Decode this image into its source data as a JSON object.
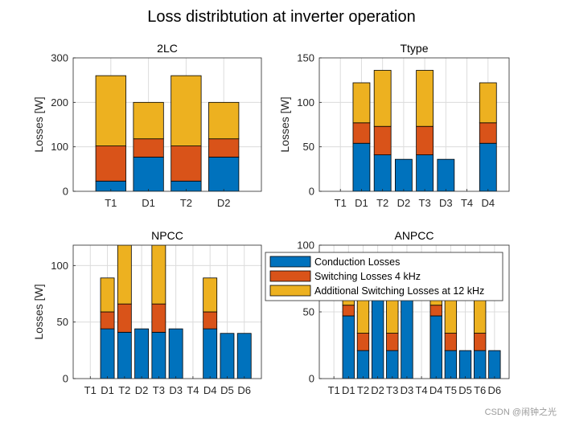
{
  "figure": {
    "title": "Loss distribtution at inverter operation",
    "watermark": "CSDN @闹钟之光"
  },
  "colors": {
    "conduction": "#0072BD",
    "switching": "#D95319",
    "additional": "#EDB120",
    "grid": "#dcdcdc",
    "axis": "#262626"
  },
  "chart_data": [
    {
      "type": "bar",
      "stacked": true,
      "title": "2LC",
      "ylabel": "Losses [W]",
      "ylim": [
        0,
        300
      ],
      "yticks": [
        0,
        100,
        200,
        300
      ],
      "grid": true,
      "categories": [
        "T1",
        "D1",
        "T2",
        "D2"
      ],
      "series": [
        {
          "name": "Conduction Losses",
          "values": [
            23,
            77,
            23,
            77
          ]
        },
        {
          "name": "Switching Losses 4 kHz",
          "values": [
            79,
            41,
            79,
            41
          ]
        },
        {
          "name": "Additional Switching Losses at 12 kHz",
          "values": [
            158,
            82,
            158,
            82
          ]
        }
      ]
    },
    {
      "type": "bar",
      "stacked": true,
      "title": "Ttype",
      "ylabel": "Losses [W]",
      "ylim": [
        0,
        150
      ],
      "yticks": [
        0,
        50,
        100,
        150
      ],
      "grid": true,
      "categories": [
        "T1",
        "D1",
        "T2",
        "D2",
        "T3",
        "D3",
        "T4",
        "D4"
      ],
      "series": [
        {
          "name": "Conduction Losses",
          "values": [
            0,
            54,
            41,
            36,
            41,
            36,
            0,
            54
          ]
        },
        {
          "name": "Switching Losses 4 kHz",
          "values": [
            0,
            23,
            32,
            0,
            32,
            0,
            0,
            23
          ]
        },
        {
          "name": "Additional Switching Losses at 12 kHz",
          "values": [
            0,
            45,
            63,
            0,
            63,
            0,
            0,
            45
          ]
        }
      ]
    },
    {
      "type": "bar",
      "stacked": true,
      "title": "NPCC",
      "ylabel": "Losses [W]",
      "ylim": [
        0,
        118
      ],
      "yticks": [
        0,
        50,
        100
      ],
      "grid": true,
      "categories": [
        "T1",
        "D1",
        "T2",
        "D2",
        "T3",
        "D3",
        "T4",
        "D4",
        "D5",
        "D6"
      ],
      "series": [
        {
          "name": "Conduction Losses",
          "values": [
            0,
            44,
            41,
            44,
            41,
            44,
            0,
            44,
            40,
            40
          ]
        },
        {
          "name": "Switching Losses 4 kHz",
          "values": [
            0,
            15,
            25,
            0,
            25,
            0,
            0,
            15,
            0,
            0
          ]
        },
        {
          "name": "Additional Switching Losses at 12 kHz",
          "values": [
            0,
            30,
            52,
            0,
            52,
            0,
            0,
            30,
            0,
            0
          ]
        }
      ]
    },
    {
      "type": "bar",
      "stacked": true,
      "title": "ANPCC",
      "ylabel": "",
      "ylim": [
        0,
        100
      ],
      "yticks": [
        0,
        50,
        100
      ],
      "grid": true,
      "categories": [
        "T1",
        "D1",
        "T2",
        "D2",
        "T3",
        "D3",
        "T4",
        "D4",
        "T5",
        "D5",
        "T6",
        "D6"
      ],
      "series": [
        {
          "name": "Conduction Losses",
          "values": [
            0,
            47,
            21,
            60,
            21,
            60,
            0,
            47,
            21,
            21,
            21,
            21
          ]
        },
        {
          "name": "Switching Losses 4 kHz",
          "values": [
            0,
            8,
            13,
            0,
            13,
            0,
            0,
            8,
            13,
            0,
            13,
            0
          ]
        },
        {
          "name": "Additional Switching Losses at 12 kHz",
          "values": [
            0,
            15,
            40,
            0,
            40,
            0,
            0,
            15,
            40,
            0,
            40,
            0
          ]
        }
      ],
      "legend": {
        "placement": "top",
        "entries": [
          "Conduction Losses",
          "Switching Losses 4 kHz",
          "Additional Switching Losses at 12 kHz"
        ]
      }
    }
  ]
}
